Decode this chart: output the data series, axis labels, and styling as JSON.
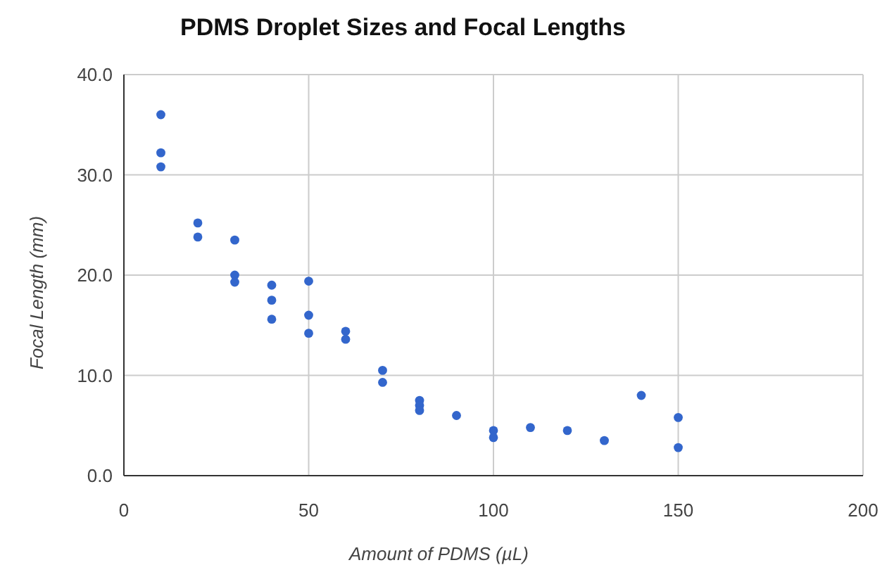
{
  "chart_data": {
    "type": "scatter",
    "title": "PDMS Droplet Sizes and Focal Lengths",
    "xlabel": "Amount of PDMS (µL)",
    "ylabel": "Focal Length (mm)",
    "x": [
      10,
      10,
      10,
      20,
      20,
      30,
      30,
      30,
      40,
      40,
      40,
      50,
      50,
      50,
      60,
      60,
      70,
      70,
      80,
      80,
      80,
      90,
      100,
      100,
      110,
      120,
      130,
      140,
      150,
      150
    ],
    "series": [
      {
        "color": "#3366cc",
        "values": [
          36.0,
          32.2,
          30.8,
          25.2,
          23.8,
          23.5,
          20.0,
          19.3,
          19.0,
          17.5,
          15.6,
          19.4,
          16.0,
          14.2,
          14.4,
          13.6,
          10.5,
          9.3,
          7.5,
          7.0,
          6.5,
          6.0,
          4.5,
          3.8,
          4.8,
          4.5,
          3.5,
          8.0,
          5.8,
          2.8
        ]
      }
    ],
    "xlim": [
      0,
      200
    ],
    "xticks": [
      0,
      50,
      100,
      150,
      200
    ],
    "ylim": [
      0,
      40
    ],
    "yticks": [
      {
        "value": 0,
        "label": "0.0"
      },
      {
        "value": 10,
        "label": "10.0"
      },
      {
        "value": 20,
        "label": "20.0"
      },
      {
        "value": 30,
        "label": "30.0"
      },
      {
        "value": 40,
        "label": "40.0"
      }
    ],
    "grid": true,
    "marker": "circle"
  }
}
